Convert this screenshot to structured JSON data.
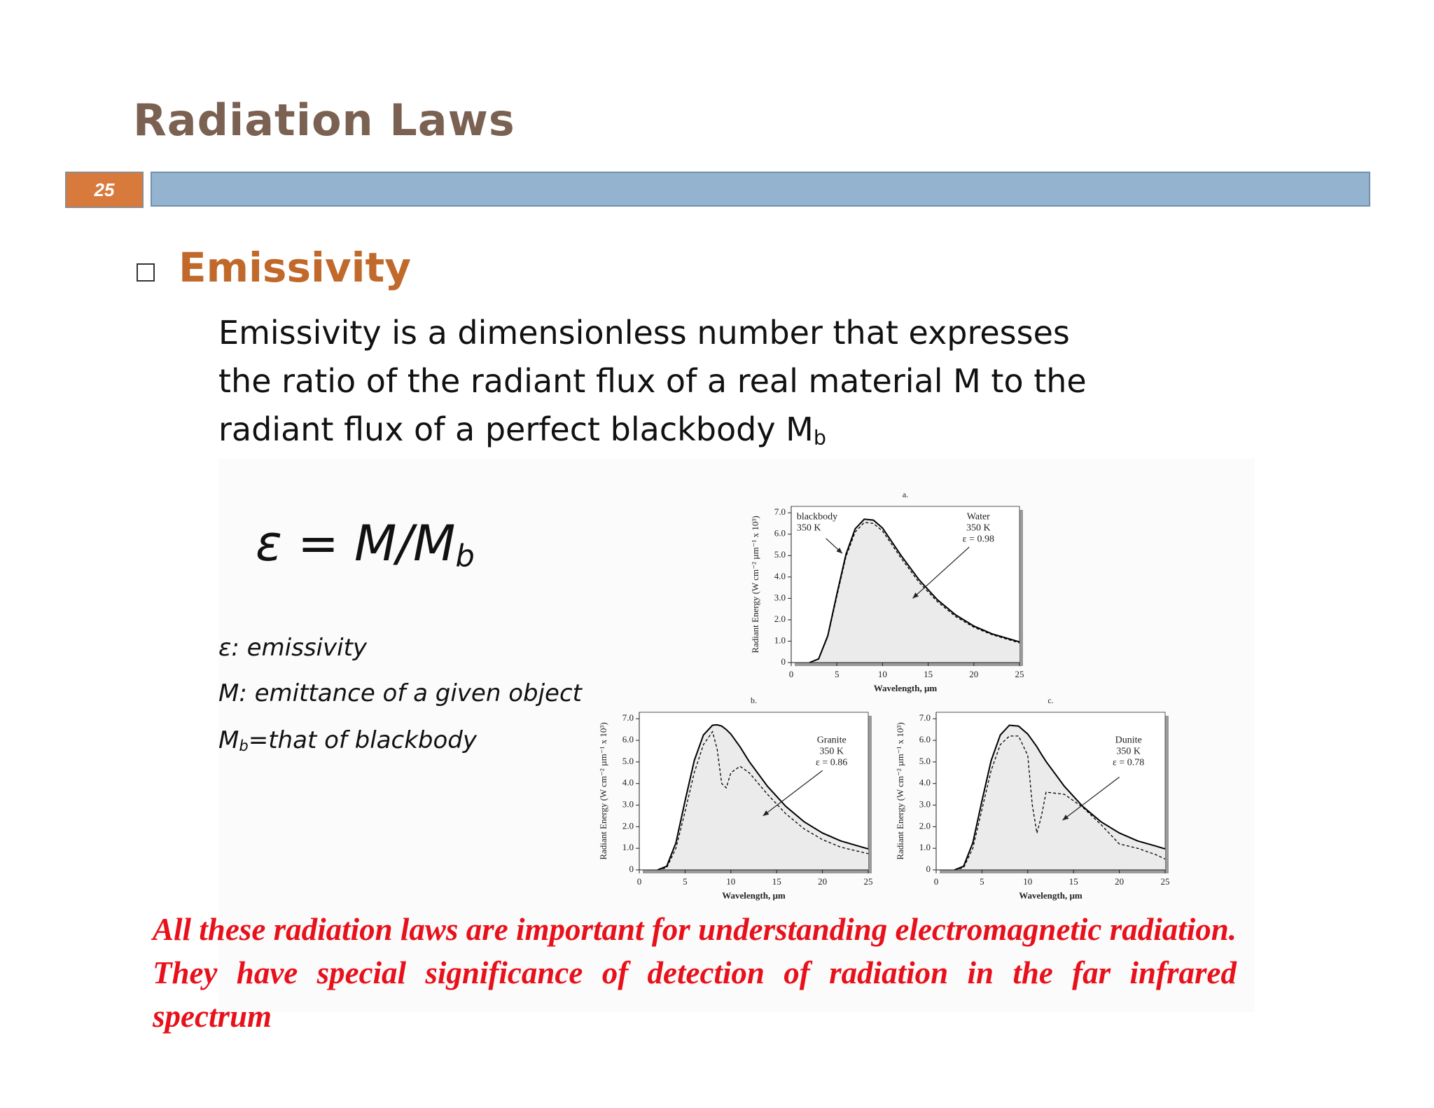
{
  "header": {
    "title": "Radiation Laws",
    "slide_number": "25"
  },
  "bullet": {
    "heading": "Emissivity"
  },
  "body": {
    "lines": [
      "Emissivity is a dimensionless number that expresses",
      "the ratio of the radiant flux of a real material M to the",
      "radiant flux of a perfect blackbody M"
    ],
    "subscript": "b"
  },
  "formula": {
    "main": "ε = M/M",
    "subscript": "b"
  },
  "definitions": [
    "ε: emissivity",
    "M: emittance of a given object"
  ],
  "definition_3": {
    "main": "M",
    "subscript": "b",
    "rest": "=that of blackbody"
  },
  "footer": {
    "text": "All these radiation laws are important for understanding electromagnetic radiation. They have special significance of detection of radiation in the far infrared spectrum"
  },
  "chart_data": [
    {
      "type": "line",
      "label": "a.",
      "xlabel": "Wavelength, µm",
      "ylabel": "Radiant Energy (W cm⁻² µm⁻¹ x 10³)",
      "x": [
        2,
        3,
        4,
        5,
        6,
        7,
        8,
        9,
        10,
        12,
        14,
        16,
        18,
        20,
        22,
        25
      ],
      "series": [
        {
          "color": "#000000",
          "style": "solid",
          "fill": "#ebebeb",
          "values": [
            0,
            0.17,
            1.25,
            3.2,
            5.06,
            6.25,
            6.7,
            6.66,
            6.29,
            5.02,
            3.87,
            2.94,
            2.23,
            1.71,
            1.34,
            0.97
          ]
        },
        {
          "color": "#000000",
          "style": "dashed",
          "values": [
            0,
            0.16,
            1.2,
            3.1,
            4.95,
            6.1,
            6.55,
            6.5,
            6.15,
            4.9,
            3.75,
            2.85,
            2.15,
            1.65,
            1.3,
            0.92
          ]
        }
      ],
      "annotations": [
        {
          "lines": [
            "blackbody",
            "350 K"
          ]
        },
        {
          "lines": [
            "Water",
            "350 K",
            "ε = 0.98"
          ]
        }
      ],
      "xlim": [
        0,
        25
      ],
      "ylim": [
        0,
        7.3
      ],
      "xticks": [
        0,
        5,
        10,
        15,
        20,
        25
      ],
      "yticks": [
        0,
        {
          "value": 1,
          "label": "1.0"
        },
        {
          "value": 2,
          "label": "2.0"
        },
        {
          "value": 3,
          "label": "3.0"
        },
        {
          "value": 4,
          "label": "4.0"
        },
        {
          "value": 5,
          "label": "5.0"
        },
        {
          "value": 6,
          "label": "6.0"
        },
        {
          "value": 7,
          "label": "7.0"
        }
      ]
    },
    {
      "type": "line",
      "label": "b.",
      "xlabel": "Wavelength, µm",
      "ylabel": "Radiant Energy (W cm⁻² µm⁻¹ x 10³)",
      "x": [
        2,
        3,
        4,
        5,
        6,
        7,
        8,
        8.5,
        9,
        9.5,
        10,
        11,
        12,
        14,
        16,
        18,
        20,
        22,
        25
      ],
      "series": [
        {
          "color": "#000000",
          "style": "solid",
          "fill": "#ebebeb",
          "values": [
            0,
            0.17,
            1.25,
            3.2,
            5.06,
            6.25,
            6.7,
            6.72,
            6.66,
            6.5,
            6.29,
            5.7,
            5.02,
            3.87,
            2.94,
            2.23,
            1.71,
            1.34,
            0.97
          ]
        },
        {
          "color": "#000000",
          "style": "dashed",
          "values": [
            0,
            0.1,
            1.0,
            2.7,
            4.5,
            5.8,
            6.4,
            5.6,
            4.0,
            3.8,
            4.5,
            4.8,
            4.5,
            3.5,
            2.6,
            1.9,
            1.4,
            1.05,
            0.75
          ]
        }
      ],
      "annotations": [
        {
          "lines": [
            "Granite",
            "350 K",
            "ε = 0.86"
          ]
        }
      ],
      "xlim": [
        0,
        25
      ],
      "ylim": [
        0,
        7.3
      ],
      "xticks": [
        0,
        5,
        10,
        15,
        20,
        25
      ],
      "yticks": [
        0,
        {
          "value": 1,
          "label": "1.0"
        },
        {
          "value": 2,
          "label": "2.0"
        },
        {
          "value": 3,
          "label": "3.0"
        },
        {
          "value": 4,
          "label": "4.0"
        },
        {
          "value": 5,
          "label": "5.0"
        },
        {
          "value": 6,
          "label": "6.0"
        },
        {
          "value": 7,
          "label": "7.0"
        }
      ]
    },
    {
      "type": "line",
      "label": "c.",
      "xlabel": "Wavelength, µm",
      "ylabel": "Radiant Energy (W cm⁻² µm⁻¹ x 10³)",
      "x": [
        2,
        3,
        4,
        5,
        6,
        7,
        8,
        9,
        10,
        10.5,
        11,
        11.5,
        12,
        14,
        16,
        18,
        20,
        22,
        24,
        25
      ],
      "series": [
        {
          "color": "#000000",
          "style": "solid",
          "fill": "#ebebeb",
          "values": [
            0,
            0.17,
            1.25,
            3.2,
            5.06,
            6.25,
            6.7,
            6.66,
            6.29,
            6.0,
            5.7,
            5.35,
            5.02,
            3.87,
            2.94,
            2.23,
            1.71,
            1.34,
            1.1,
            0.97
          ]
        },
        {
          "color": "#000000",
          "style": "dashed",
          "values": [
            0,
            0.1,
            1.0,
            2.8,
            4.6,
            5.8,
            6.2,
            6.2,
            5.3,
            3.0,
            1.7,
            2.5,
            3.6,
            3.5,
            2.9,
            2.1,
            1.2,
            1.0,
            0.7,
            0.5
          ]
        }
      ],
      "annotations": [
        {
          "lines": [
            "Dunite",
            "350 K",
            "ε = 0.78"
          ]
        }
      ],
      "xlim": [
        0,
        25
      ],
      "ylim": [
        0,
        7.3
      ],
      "xticks": [
        0,
        5,
        10,
        15,
        20,
        25
      ],
      "yticks": [
        0,
        {
          "value": 1,
          "label": "1.0"
        },
        {
          "value": 2,
          "label": "2.0"
        },
        {
          "value": 3,
          "label": "3.0"
        },
        {
          "value": 4,
          "label": "4.0"
        },
        {
          "value": 5,
          "label": "5.0"
        },
        {
          "value": 6,
          "label": "6.0"
        },
        {
          "value": 7,
          "label": "7.0"
        }
      ]
    }
  ]
}
